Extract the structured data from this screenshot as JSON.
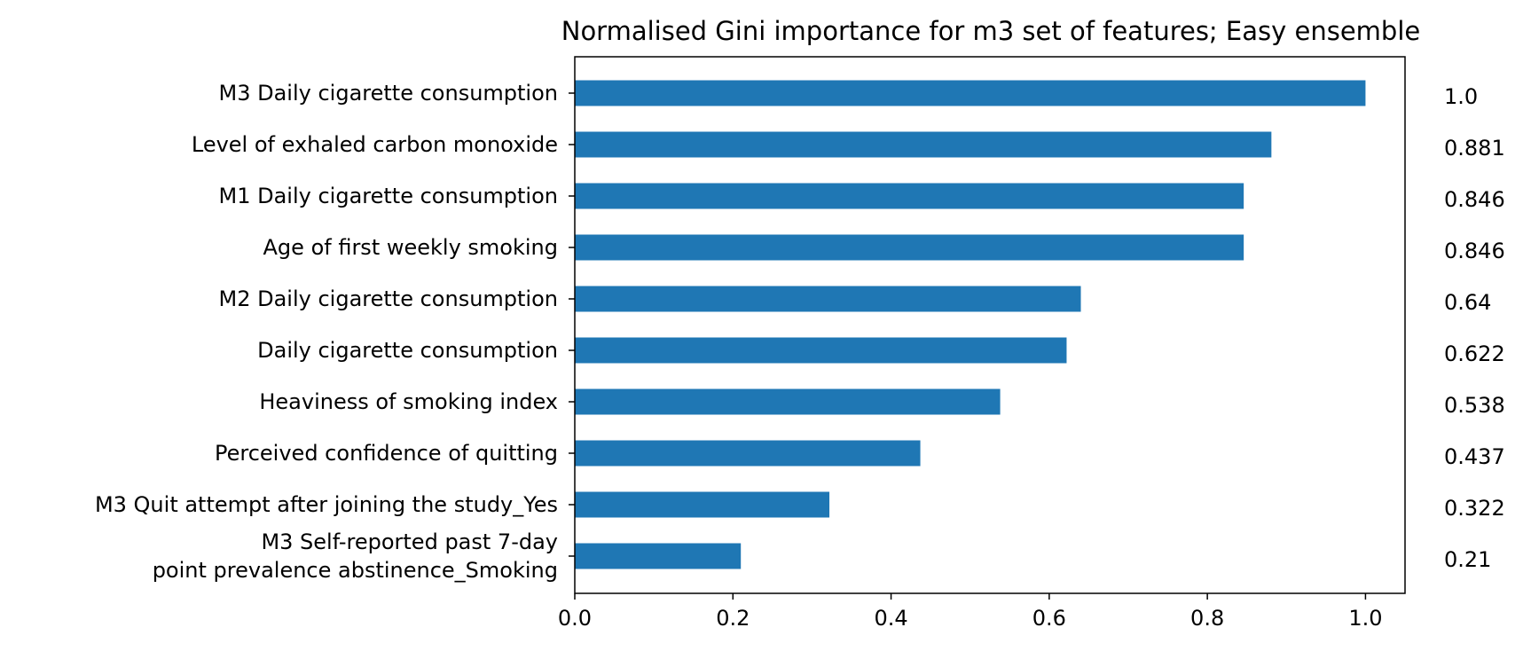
{
  "chart_data": {
    "type": "bar",
    "orientation": "horizontal",
    "title": "Normalised Gini importance for m3 set of features; Easy ensemble",
    "xlabel": "",
    "ylabel": "",
    "xlim": [
      0,
      1.05
    ],
    "xticks": [
      "0.0",
      "0.2",
      "0.4",
      "0.6",
      "0.8",
      "1.0"
    ],
    "xtick_values": [
      0,
      0.2,
      0.4,
      0.6,
      0.8,
      1.0
    ],
    "grid": false,
    "legend": "none",
    "bar_color": "#1f77b4",
    "categories": [
      [
        "M3 Daily cigarette consumption"
      ],
      [
        "Level of exhaled carbon monoxide"
      ],
      [
        "M1 Daily cigarette consumption"
      ],
      [
        "Age of first weekly smoking"
      ],
      [
        "M2 Daily cigarette consumption"
      ],
      [
        "Daily cigarette consumption"
      ],
      [
        "Heaviness of smoking index"
      ],
      [
        "Perceived confidence of quitting"
      ],
      [
        "M3 Quit attempt after joining the study_Yes"
      ],
      [
        "M3 Self-reported past 7-day",
        "point prevalence abstinence_Smoking"
      ]
    ],
    "values": [
      1.0,
      0.881,
      0.846,
      0.846,
      0.64,
      0.622,
      0.538,
      0.437,
      0.322,
      0.21
    ],
    "value_labels": [
      "1.0",
      "0.881",
      "0.846",
      "0.846",
      "0.64",
      "0.622",
      "0.538",
      "0.437",
      "0.322",
      "0.21"
    ]
  }
}
